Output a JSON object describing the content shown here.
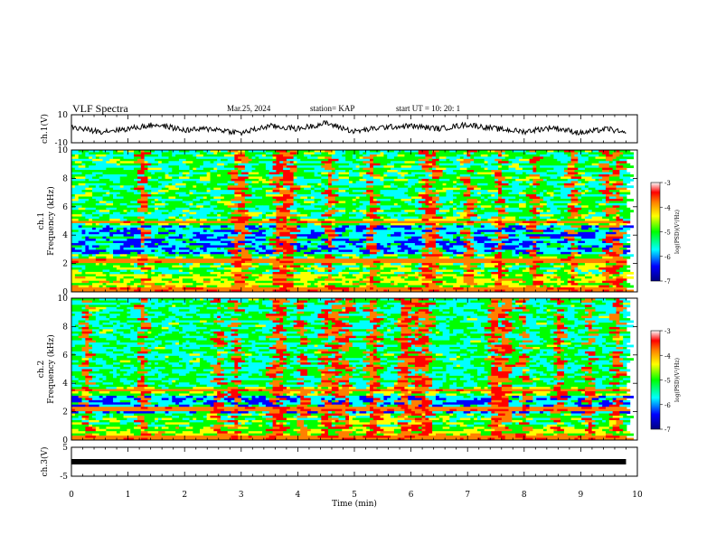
{
  "header": {
    "title": "VLF Spectra",
    "date": "Mar.25, 2024",
    "station": "station= KAP",
    "start": "start UT = 10: 20: 1"
  },
  "colors": {
    "colormap": [
      "#00008b",
      "#0000ff",
      "#00ffff",
      "#00ff00",
      "#ffff00",
      "#ff8000",
      "#ff0000",
      "#ffc0cb",
      "#ffffff"
    ]
  },
  "chart_data": [
    {
      "type": "line",
      "panel": "ch1-waveform",
      "ylabel": "ch.1(V)",
      "ylim": [
        -10,
        10
      ],
      "yticks": [
        "10",
        "-10"
      ],
      "xlim": [
        0,
        10
      ],
      "x": [
        0,
        0.5,
        1,
        1.5,
        2,
        2.5,
        3,
        3.5,
        4,
        4.5,
        5,
        5.5,
        6,
        6.5,
        7,
        7.5,
        8,
        8.5,
        9,
        9.5,
        9.8
      ],
      "y": [
        1,
        -2,
        0,
        3,
        -1,
        0,
        -3,
        2,
        0,
        4,
        -2,
        1,
        2,
        0,
        3,
        0,
        -2,
        1,
        -3,
        0,
        -4
      ]
    },
    {
      "type": "heatmap",
      "panel": "ch1-spectrogram",
      "ylabel": "ch.1 Frequency (kHz)",
      "ylim": [
        0,
        10
      ],
      "yticks": [
        "0",
        "2",
        "4",
        "6",
        "8",
        "10"
      ],
      "xlim": [
        0,
        10
      ],
      "colorbar": {
        "label": "log(PSD)(V²/Hz)",
        "range": [
          -7,
          -3
        ],
        "ticks": [
          "-3",
          "-4",
          "-5",
          "-6",
          "-7"
        ]
      }
    },
    {
      "type": "heatmap",
      "panel": "ch2-spectrogram",
      "ylabel": "ch.2 Frequency (kHz)",
      "ylim": [
        0,
        10
      ],
      "yticks": [
        "0",
        "2",
        "4",
        "6",
        "8",
        "10"
      ],
      "xlim": [
        0,
        10
      ],
      "colorbar": {
        "label": "log(PSD)(V²/Hz)",
        "range": [
          -7,
          -3
        ],
        "ticks": [
          "-3",
          "-4",
          "-5",
          "-6",
          "-7"
        ]
      }
    },
    {
      "type": "line",
      "panel": "ch3-waveform",
      "ylabel": "ch.3(V)",
      "ylim": [
        -5,
        5
      ],
      "yticks": [
        "5",
        "-5"
      ],
      "xlim": [
        0,
        10
      ],
      "x": [
        0,
        9.8
      ],
      "y": [
        0,
        0
      ],
      "xlabel": "Time (min)",
      "xticks": [
        "0",
        "1",
        "2",
        "3",
        "4",
        "5",
        "6",
        "7",
        "8",
        "9",
        "10"
      ]
    }
  ]
}
